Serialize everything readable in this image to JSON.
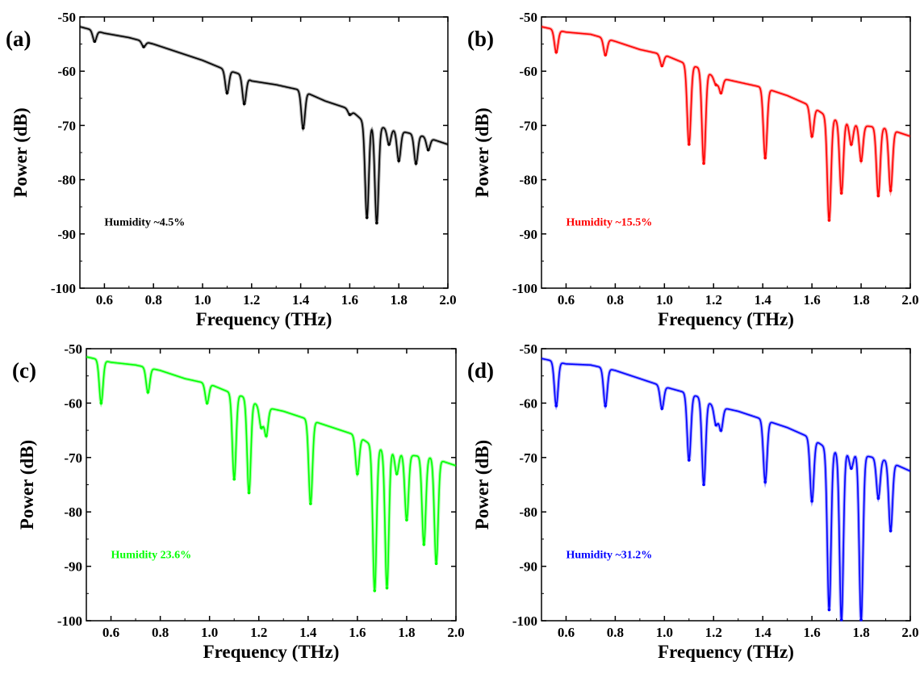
{
  "chart_data": [
    {
      "type": "line",
      "panel_label": "(a)",
      "annotation": "Humidity ~4.5%",
      "color": "#000000",
      "xlabel": "Frequency (THz)",
      "ylabel": "Power (dB)",
      "xlim": [
        0.5,
        2.0
      ],
      "ylim": [
        -100,
        -50
      ],
      "x_ticks": [
        "0.6",
        "0.8",
        "1.0",
        "1.2",
        "1.4",
        "1.6",
        "1.8",
        "2.0"
      ],
      "y_ticks": [
        "-50",
        "-60",
        "-70",
        "-80",
        "-90",
        "-100"
      ],
      "grid": false,
      "baseline": [
        [
          0.5,
          -51.8
        ],
        [
          0.6,
          -53.0
        ],
        [
          0.7,
          -53.8
        ],
        [
          0.8,
          -55.0
        ],
        [
          0.9,
          -56.5
        ],
        [
          1.0,
          -58.0
        ],
        [
          1.08,
          -59.5
        ],
        [
          1.15,
          -60.5
        ],
        [
          1.2,
          -61.8
        ],
        [
          1.3,
          -62.5
        ],
        [
          1.4,
          -63.5
        ],
        [
          1.5,
          -65.5
        ],
        [
          1.6,
          -67.0
        ],
        [
          1.65,
          -69.0
        ],
        [
          1.7,
          -70.0
        ],
        [
          1.8,
          -71.0
        ],
        [
          1.9,
          -72.0
        ],
        [
          2.0,
          -73.5
        ]
      ],
      "dips": [
        [
          0.56,
          -54.5
        ],
        [
          0.76,
          -55.5
        ],
        [
          1.1,
          -64.0
        ],
        [
          1.17,
          -66.0
        ],
        [
          1.41,
          -70.5
        ],
        [
          1.6,
          -68.0
        ],
        [
          1.67,
          -87.0
        ],
        [
          1.71,
          -88.0
        ],
        [
          1.76,
          -73.5
        ],
        [
          1.8,
          -76.5
        ],
        [
          1.87,
          -77.0
        ],
        [
          1.92,
          -74.5
        ]
      ]
    },
    {
      "type": "line",
      "panel_label": "(b)",
      "annotation": "Humidity ~15.5%",
      "color": "#ff0000",
      "xlabel": "Frequency (THz)",
      "ylabel": "Power (dB)",
      "xlim": [
        0.5,
        2.0
      ],
      "ylim": [
        -100,
        -50
      ],
      "x_ticks": [
        "0.6",
        "0.8",
        "1.0",
        "1.2",
        "1.4",
        "1.6",
        "1.8",
        "2.0"
      ],
      "y_ticks": [
        "-50",
        "-60",
        "-70",
        "-80",
        "-90",
        "-100"
      ],
      "grid": false,
      "baseline": [
        [
          0.5,
          -51.8
        ],
        [
          0.6,
          -52.8
        ],
        [
          0.7,
          -53.2
        ],
        [
          0.8,
          -54.5
        ],
        [
          0.9,
          -56.0
        ],
        [
          1.0,
          -57.0
        ],
        [
          1.08,
          -58.5
        ],
        [
          1.15,
          -59.5
        ],
        [
          1.2,
          -61.0
        ],
        [
          1.3,
          -62.0
        ],
        [
          1.4,
          -63.0
        ],
        [
          1.5,
          -64.5
        ],
        [
          1.6,
          -66.5
        ],
        [
          1.65,
          -68.0
        ],
        [
          1.7,
          -69.0
        ],
        [
          1.8,
          -70.0
        ],
        [
          1.9,
          -70.5
        ],
        [
          2.0,
          -72.0
        ]
      ],
      "dips": [
        [
          0.56,
          -56.5
        ],
        [
          0.76,
          -57.0
        ],
        [
          0.99,
          -59.0
        ],
        [
          1.1,
          -73.5
        ],
        [
          1.16,
          -77.0
        ],
        [
          1.21,
          -62.5
        ],
        [
          1.23,
          -64.0
        ],
        [
          1.41,
          -76.0
        ],
        [
          1.6,
          -72.0
        ],
        [
          1.67,
          -87.5
        ],
        [
          1.72,
          -82.5
        ],
        [
          1.76,
          -73.5
        ],
        [
          1.8,
          -76.5
        ],
        [
          1.87,
          -83.0
        ],
        [
          1.92,
          -82.0
        ]
      ]
    },
    {
      "type": "line",
      "panel_label": "(c)",
      "annotation": "Humidity 23.6%",
      "color": "#00ff00",
      "xlabel": "Frequency (THz)",
      "ylabel": "Power (dB)",
      "xlim": [
        0.5,
        2.0
      ],
      "ylim": [
        -100,
        -50
      ],
      "x_ticks": [
        "0.6",
        "0.8",
        "1.0",
        "1.2",
        "1.4",
        "1.6",
        "1.8",
        "2.0"
      ],
      "y_ticks": [
        "-50",
        "-60",
        "-70",
        "-80",
        "-90",
        "-100"
      ],
      "grid": false,
      "baseline": [
        [
          0.5,
          -51.5
        ],
        [
          0.6,
          -52.5
        ],
        [
          0.7,
          -53.0
        ],
        [
          0.8,
          -54.0
        ],
        [
          0.9,
          -55.5
        ],
        [
          1.0,
          -56.5
        ],
        [
          1.08,
          -58.0
        ],
        [
          1.15,
          -59.0
        ],
        [
          1.2,
          -60.5
        ],
        [
          1.3,
          -61.5
        ],
        [
          1.4,
          -63.0
        ],
        [
          1.5,
          -64.5
        ],
        [
          1.6,
          -66.0
        ],
        [
          1.65,
          -67.5
        ],
        [
          1.7,
          -68.5
        ],
        [
          1.8,
          -69.5
        ],
        [
          1.9,
          -70.0
        ],
        [
          2.0,
          -71.5
        ]
      ],
      "dips": [
        [
          0.56,
          -60.0
        ],
        [
          0.75,
          -58.0
        ],
        [
          0.99,
          -60.0
        ],
        [
          1.1,
          -74.0
        ],
        [
          1.16,
          -76.5
        ],
        [
          1.21,
          -64.5
        ],
        [
          1.23,
          -66.0
        ],
        [
          1.41,
          -78.5
        ],
        [
          1.6,
          -73.0
        ],
        [
          1.67,
          -94.5
        ],
        [
          1.72,
          -94.0
        ],
        [
          1.76,
          -73.0
        ],
        [
          1.8,
          -81.5
        ],
        [
          1.87,
          -86.0
        ],
        [
          1.92,
          -89.5
        ]
      ]
    },
    {
      "type": "line",
      "panel_label": "(d)",
      "annotation": "Humidity ~31.2%",
      "color": "#0000ff",
      "xlabel": "Frequency (THz)",
      "ylabel": "Power (dB)",
      "xlim": [
        0.5,
        2.0
      ],
      "ylim": [
        -100,
        -50
      ],
      "x_ticks": [
        "0.6",
        "0.8",
        "1.0",
        "1.2",
        "1.4",
        "1.6",
        "1.8",
        "2.0"
      ],
      "y_ticks": [
        "-50",
        "-60",
        "-70",
        "-80",
        "-90",
        "-100"
      ],
      "grid": false,
      "baseline": [
        [
          0.5,
          -51.8
        ],
        [
          0.6,
          -52.8
        ],
        [
          0.7,
          -53.0
        ],
        [
          0.8,
          -54.0
        ],
        [
          0.9,
          -55.5
        ],
        [
          1.0,
          -57.0
        ],
        [
          1.08,
          -58.0
        ],
        [
          1.15,
          -59.0
        ],
        [
          1.2,
          -60.5
        ],
        [
          1.3,
          -61.5
        ],
        [
          1.4,
          -63.0
        ],
        [
          1.5,
          -64.5
        ],
        [
          1.6,
          -66.5
        ],
        [
          1.65,
          -68.0
        ],
        [
          1.7,
          -69.0
        ],
        [
          1.8,
          -69.5
        ],
        [
          1.9,
          -70.5
        ],
        [
          2.0,
          -72.5
        ]
      ],
      "dips": [
        [
          0.56,
          -60.5
        ],
        [
          0.76,
          -60.5
        ],
        [
          0.99,
          -61.0
        ],
        [
          1.1,
          -70.5
        ],
        [
          1.16,
          -75.0
        ],
        [
          1.21,
          -64.0
        ],
        [
          1.23,
          -65.0
        ],
        [
          1.41,
          -74.5
        ],
        [
          1.6,
          -78.0
        ],
        [
          1.67,
          -98.0
        ],
        [
          1.72,
          -100.0
        ],
        [
          1.76,
          -72.0
        ],
        [
          1.8,
          -100.0
        ],
        [
          1.87,
          -77.5
        ],
        [
          1.92,
          -83.5
        ]
      ]
    }
  ]
}
